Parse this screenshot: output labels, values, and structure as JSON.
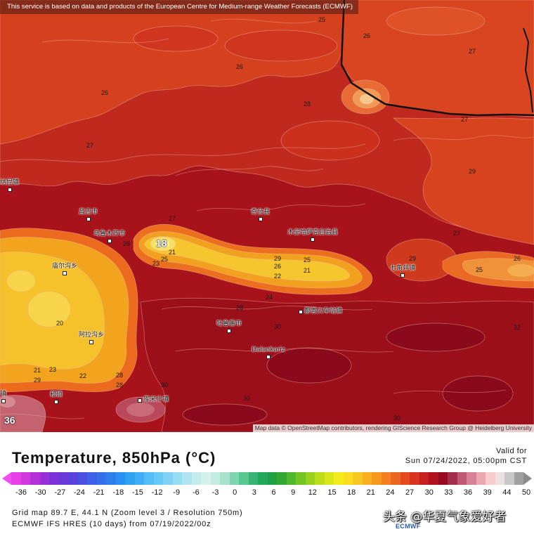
{
  "banner": {
    "text": "This service is based on data and products of the European Centre for Medium-range Weather Forecasts (ECMWF)"
  },
  "attribution": {
    "text": "Map data © OpenStreetMap contributors, rendering GIScience Research Group @ Heidelberg University"
  },
  "map": {
    "places": [
      "纳昆镇",
      "昌吉市",
      "奇台县",
      "乌鲁木齐市",
      "木垒哈萨克自治县",
      "庙尔沟乡",
      "七角井镇",
      "鄯善火车站镇",
      "吐鲁番市",
      "阿拉沟乡",
      "Dalankariz",
      "和硕",
      "库米什镇",
      "镇"
    ],
    "contour_labels": [
      "25",
      "26",
      "27",
      "26",
      "26",
      "28",
      "27",
      "27",
      "29",
      "27",
      "27",
      "28",
      "21",
      "25",
      "23",
      "29",
      "26",
      "25",
      "21",
      "22",
      "29",
      "25",
      "26",
      "24",
      "28",
      "30",
      "20",
      "32",
      "21",
      "23",
      "22",
      "29",
      "28",
      "28",
      "30",
      "30",
      "30",
      "18",
      "36"
    ]
  },
  "legend": {
    "title": "Temperature, 850hPa (°C)",
    "valid_label": "Valid for",
    "valid_time": "Sun 07/24/2022, 05:00pm CST",
    "ticks": [
      "-36",
      "-30",
      "-27",
      "-24",
      "-21",
      "-18",
      "-15",
      "-12",
      "-9",
      "-6",
      "-3",
      "0",
      "3",
      "6",
      "9",
      "12",
      "15",
      "18",
      "21",
      "24",
      "27",
      "30",
      "33",
      "36",
      "39",
      "44",
      "50"
    ],
    "colors": [
      "#e840e8",
      "#d038e0",
      "#b430d8",
      "#9830d8",
      "#7c32d8",
      "#6838d8",
      "#5842dc",
      "#4a50e0",
      "#3e60e6",
      "#3470ea",
      "#2c80ee",
      "#2890f0",
      "#30a0f2",
      "#40aef4",
      "#54bcf6",
      "#68c8f6",
      "#80d2f4",
      "#98dcf2",
      "#b0e4f0",
      "#c4ecec",
      "#d4f0ea",
      "#c4ece0",
      "#a8e2cc",
      "#80d4b0",
      "#58c692",
      "#36b474",
      "#22a85a",
      "#20a244",
      "#30aa34",
      "#50b82a",
      "#74c424",
      "#98d020",
      "#bcdc1c",
      "#dce61c",
      "#f2ec1c",
      "#f8dc20",
      "#f8c820",
      "#f8b020",
      "#f69820",
      "#f28020",
      "#ec6620",
      "#e44c20",
      "#d83420",
      "#c82020",
      "#b01220",
      "#960a20",
      "#a0304c",
      "#c05a74",
      "#d88096",
      "#eca8b0",
      "#f6cccc",
      "#ece0e0",
      "#c8c8c8",
      "#a0a0a0"
    ],
    "arrow_low_color": "#f050f0",
    "arrow_high_color": "#8c8c8c"
  },
  "footer": {
    "grid": "Grid map 89.7 E, 44.1 N (Zoom level 3 / Resolution 750m)",
    "model": "ECMWF IFS HRES (10 days) from 07/19/2022/00z"
  },
  "watermark": {
    "text": "头条 @华夏气象爱好者",
    "logo": "ECMWF"
  }
}
